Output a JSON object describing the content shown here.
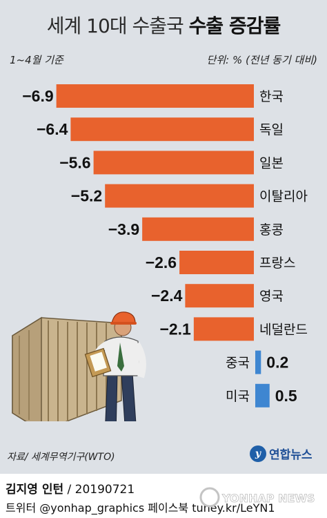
{
  "header": {
    "title_light": "세계 10대 수출국",
    "title_bold": "수출 증감률",
    "period": "1~4월 기준",
    "unit": "단위: % (전년 동기 대비)"
  },
  "chart_data": {
    "type": "bar",
    "orientation": "horizontal",
    "title": "세계 10대 수출국 수출 증감률",
    "categories": [
      "한국",
      "독일",
      "일본",
      "이탈리아",
      "홍콩",
      "프랑스",
      "영국",
      "네덜란드",
      "중국",
      "미국"
    ],
    "values": [
      -6.9,
      -6.4,
      -5.6,
      -5.2,
      -3.9,
      -2.6,
      -2.4,
      -2.1,
      0.2,
      0.5
    ],
    "value_labels": [
      "−6.9",
      "−6.4",
      "−5.6",
      "−5.2",
      "−3.9",
      "−2.6",
      "−2.4",
      "−2.1",
      "0.2",
      "0.5"
    ],
    "colors": {
      "negative": "#e8622d",
      "positive": "#3e86d1",
      "background": "#dde1e6"
    },
    "grid": false,
    "legend": "none"
  },
  "footer": {
    "source": "자료/ 세계무역기구(WTO)",
    "logo_text": "연합뉴스",
    "logo_icon": "yonhap-y-icon",
    "author_name": "김지영 인턴",
    "author_date": " / 20190721",
    "social": "트위터 @yonhap_graphics  페이스북 tuney.kr/LeYN1",
    "watermark": "YONHAP NEWS"
  }
}
